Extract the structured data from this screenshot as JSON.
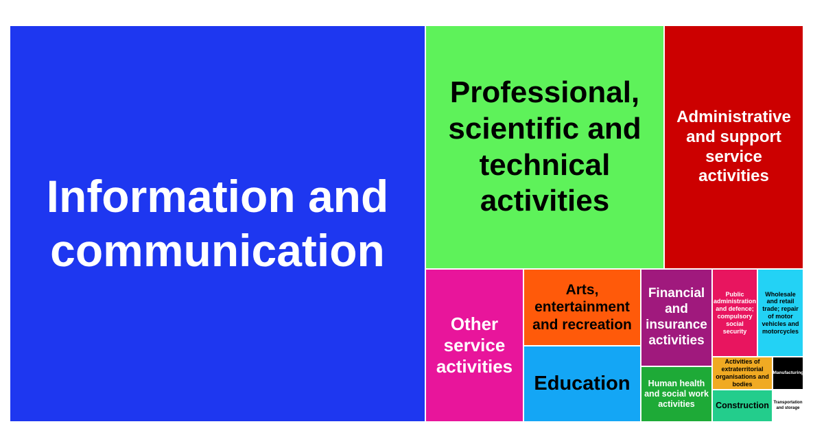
{
  "chart_data": {
    "type": "treemap",
    "title": "",
    "tiles": [
      {
        "label": "Information and communication",
        "color": "#1E37F0",
        "text_color": "#ffffff"
      },
      {
        "label": "Professional, scientific and technical activities",
        "color": "#5EF25A",
        "text_color": "#000000"
      },
      {
        "label": "Administrative and support service activities",
        "color": "#CC0000",
        "text_color": "#ffffff"
      },
      {
        "label": "Other service activities",
        "color": "#E8159B",
        "text_color": "#ffffff"
      },
      {
        "label": "Arts, entertainment and recreation",
        "color": "#FF5A0A",
        "text_color": "#000000"
      },
      {
        "label": "Education",
        "color": "#14A6F5",
        "text_color": "#000000"
      },
      {
        "label": "Financial and insurance activities",
        "color": "#A0197D",
        "text_color": "#ffffff"
      },
      {
        "label": "Human health and social work activities",
        "color": "#1EAA37",
        "text_color": "#ffffff"
      },
      {
        "label": "Public administration and defence; compulsory social security",
        "color": "#E8155F",
        "text_color": "#ffffff"
      },
      {
        "label": "Wholesale and retail trade; repair of motor vehicles and motorcycles",
        "color": "#23D2F5",
        "text_color": "#000000"
      },
      {
        "label": "Activities of extraterritorial organisations and bodies",
        "color": "#F0AA23",
        "text_color": "#000000"
      },
      {
        "label": "Manufacturing",
        "color": "#000000",
        "text_color": "#ffffff"
      },
      {
        "label": "Construction",
        "color": "#23CD8C",
        "text_color": "#000000"
      },
      {
        "label": "Transportation and storage",
        "color": "#ffffff",
        "text_color": "#000000"
      }
    ]
  }
}
